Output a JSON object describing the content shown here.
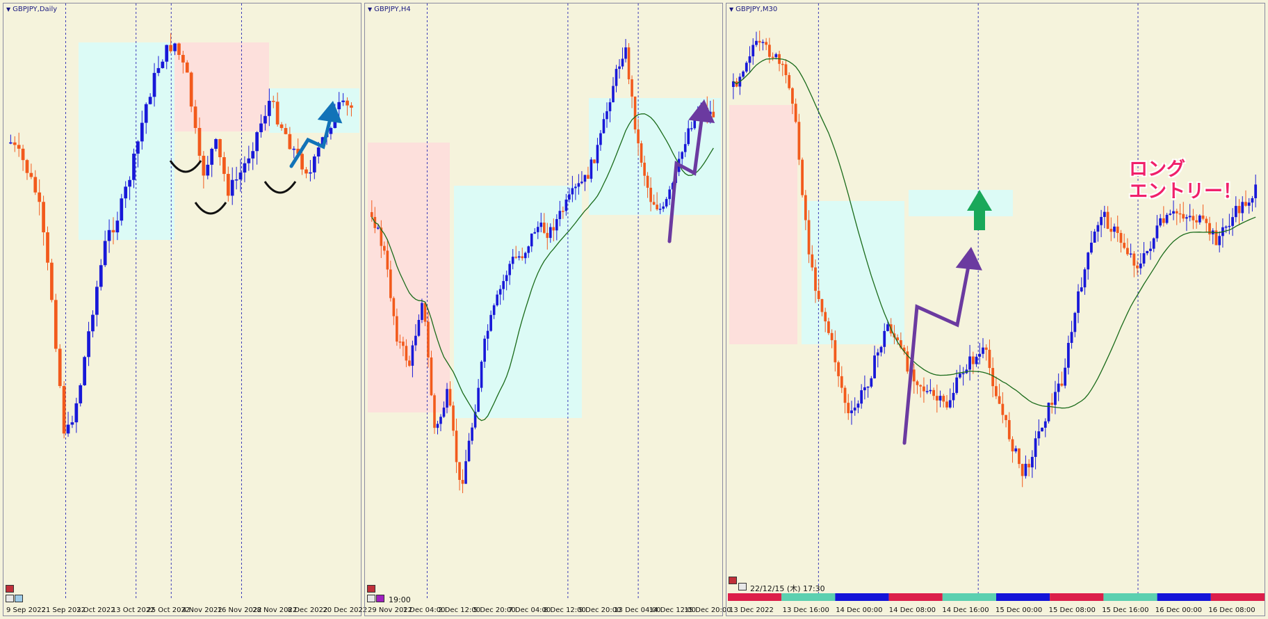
{
  "panels": [
    {
      "title": "GBPJPY,Daily",
      "time_labels": [
        "9 Sep 2022",
        "21 Sep 2022",
        "3 Oct 2022",
        "13 Oct 2022",
        "25 Oct 2022",
        "4 Nov 2022",
        "16 Nov 2022",
        "28 Nov 2022",
        "8 Dec 2022",
        "20 Dec 2022"
      ],
      "session_lines_after_label": [
        2,
        4,
        5,
        7
      ]
    },
    {
      "title": "GBPJPY,H4",
      "time_labels": [
        "29 Nov 2022",
        "1 Dec 04:00",
        "2 Dec 12:00",
        "5 Dec 20:00",
        "7 Dec 04:00",
        "8 Dec 12:00",
        "9 Dec 20:00",
        "13 Dec 04:00",
        "14 Dec 12:00",
        "15 Dec 20:00"
      ],
      "session_lines_after_label": [
        2,
        6,
        8
      ],
      "corner_label": "19:00"
    },
    {
      "title": "GBPJPY,M30",
      "time_labels": [
        "13 Dec 2022",
        "13 Dec 16:00",
        "14 Dec 00:00",
        "14 Dec 08:00",
        "14 Dec 16:00",
        "15 Dec 00:00",
        "15 Dec 08:00",
        "15 Dec 16:00",
        "16 Dec 00:00",
        "16 Dec 08:00"
      ],
      "session_lines_after_label": [
        2,
        5,
        8
      ],
      "timestamp": "22/12/15 (木) 17:30"
    }
  ],
  "annotation": {
    "text": "ロング\nエントリー！"
  },
  "colors": {
    "background": "#f5f3dc",
    "bull_candle": "#1818d8",
    "bear_candle": "#f25a1c",
    "moving_average": "#1a6b1a",
    "zone_blue": "#dcfbf6",
    "zone_pink": "#fde0dc",
    "arrow_blue": "#1173b8",
    "arrow_purple": "#6b3aa0",
    "arrow_green": "#19a85a",
    "pattern_mark": "#111111",
    "annotation_text": "#f0206a",
    "session_line": "#3a3ab8",
    "session_bar_colors": [
      "#dc1f4a",
      "#5bd0b0",
      "#1414d8"
    ]
  },
  "chart_data": [
    {
      "type": "candlestick",
      "title": "GBPJPY,Daily",
      "x_labels": [
        "9 Sep 2022",
        "21 Sep 2022",
        "3 Oct 2022",
        "13 Oct 2022",
        "25 Oct 2022",
        "4 Nov 2022",
        "16 Nov 2022",
        "28 Nov 2022",
        "8 Dec 2022",
        "20 Dec 2022"
      ],
      "grid": false
    },
    {
      "type": "candlestick",
      "title": "GBPJPY,H4",
      "x_labels": [
        "29 Nov 2022",
        "1 Dec 04:00",
        "2 Dec 12:00",
        "5 Dec 20:00",
        "7 Dec 04:00",
        "8 Dec 12:00",
        "9 Dec 20:00",
        "13 Dec 04:00",
        "14 Dec 12:00",
        "15 Dec 20:00"
      ],
      "grid": false,
      "moving_average": true
    },
    {
      "type": "candlestick",
      "title": "GBPJPY,M30",
      "x_labels": [
        "13 Dec 2022",
        "13 Dec 16:00",
        "14 Dec 00:00",
        "14 Dec 08:00",
        "14 Dec 16:00",
        "15 Dec 00:00",
        "15 Dec 08:00",
        "15 Dec 16:00",
        "16 Dec 00:00",
        "16 Dec 08:00"
      ],
      "grid": false,
      "moving_average": true
    }
  ]
}
